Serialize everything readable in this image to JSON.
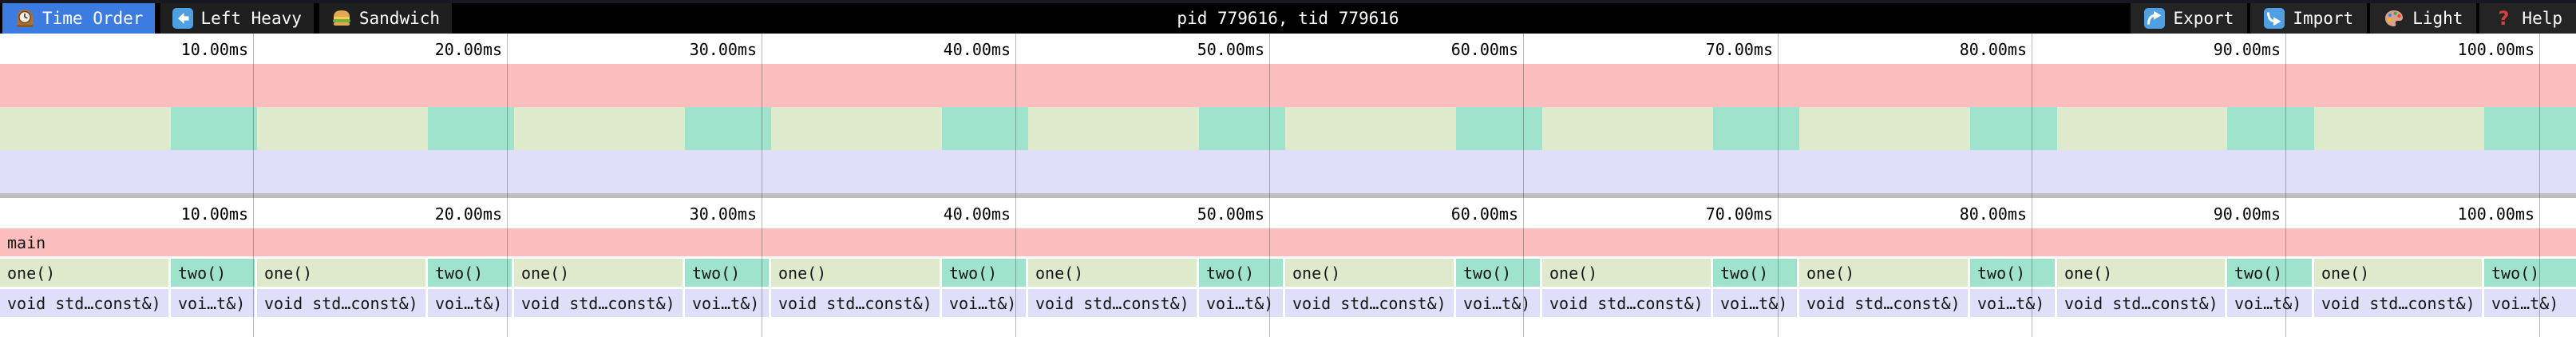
{
  "topbar": {
    "tabs": [
      {
        "label": "Time Order",
        "icon": "clock-icon",
        "selected": true
      },
      {
        "label": "Left Heavy",
        "icon": "left-arrow-icon",
        "selected": false
      },
      {
        "label": "Sandwich",
        "icon": "sandwich-icon",
        "selected": false
      }
    ],
    "title": "pid 779616, tid 779616",
    "actions": [
      {
        "label": "Export",
        "icon": "export-icon"
      },
      {
        "label": "Import",
        "icon": "import-icon"
      },
      {
        "label": "Light",
        "icon": "palette-icon"
      },
      {
        "label": "Help",
        "icon": "help-icon"
      }
    ],
    "colors": {
      "bar_bg": "#000000",
      "tab_bg": "#1f1f1f",
      "selected_tab": "#3c7ce0",
      "button_bg": "#242424",
      "icon_blue": "#4f9fe3"
    }
  },
  "chart_data": {
    "type": "flamegraph",
    "unit": "ms",
    "visible_range_ms": [
      0,
      101.4
    ],
    "ticks": [
      {
        "ms": 10,
        "label": "10.00ms"
      },
      {
        "ms": 20,
        "label": "20.00ms"
      },
      {
        "ms": 30,
        "label": "30.00ms"
      },
      {
        "ms": 40,
        "label": "40.00ms"
      },
      {
        "ms": 50,
        "label": "50.00ms"
      },
      {
        "ms": 60,
        "label": "60.00ms"
      },
      {
        "ms": 70,
        "label": "70.00ms"
      },
      {
        "ms": 80,
        "label": "80.00ms"
      },
      {
        "ms": 90,
        "label": "90.00ms"
      },
      {
        "ms": 100,
        "label": "100.00ms"
      }
    ],
    "root_frame": {
      "label": "main",
      "color": "#fbbdbd",
      "start_ms": 0,
      "end_ms": 101.4
    },
    "iteration_count": 10,
    "period_ms": 10.12,
    "iteration_frames": [
      {
        "level": 1,
        "label": "one()",
        "color": "#dfeacd",
        "start_offset_ms": 0,
        "duration_ms": 6.72
      },
      {
        "level": 1,
        "label": "two()",
        "color": "#9fe3cc",
        "start_offset_ms": 6.72,
        "duration_ms": 3.4
      },
      {
        "level": 2,
        "label": "void std…const&)",
        "color": "#e1defa",
        "start_offset_ms": 0,
        "duration_ms": 6.72
      },
      {
        "level": 2,
        "label": "voi…t&)",
        "color": "#e1defa",
        "start_offset_ms": 6.72,
        "duration_ms": 3.4
      }
    ],
    "last_iteration_extends_to_right_edge": true,
    "minimap_rows": [
      {
        "depth": 0,
        "style": "continuous",
        "color": "#fbbdbd"
      },
      {
        "depth": 1,
        "style": "alternating one()/two()",
        "colors": [
          "#dfeacd",
          "#9fe3cc"
        ]
      },
      {
        "depth": 2,
        "style": "continuous",
        "color": "#e1defa"
      }
    ],
    "gridline_color": "rgba(0,0,0,0.27)",
    "divider_color": "#bdbdbd"
  }
}
